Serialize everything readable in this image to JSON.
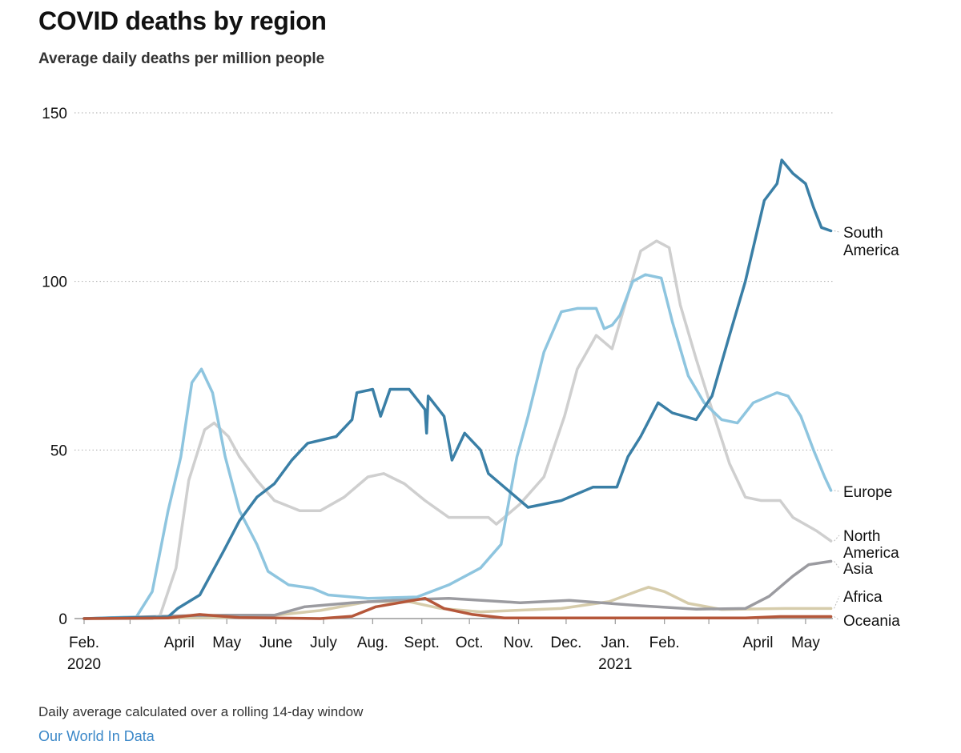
{
  "title": "COVID deaths by region",
  "subtitle": "Average daily deaths per million people",
  "footer": {
    "note": "Daily average calculated over a rolling 14-day window",
    "source": "Our World In Data"
  },
  "chart_data": {
    "type": "line",
    "title": "COVID deaths by region",
    "subtitle": "Average daily deaths per million people",
    "xlabel": "",
    "ylabel": "",
    "ylim": [
      0,
      150
    ],
    "xlim": [
      "2020-02-01",
      "2021-05-17"
    ],
    "grid": true,
    "legend": "direct labels at right end of lines",
    "y_ticks": [
      {
        "value": 0,
        "label": "0"
      },
      {
        "value": 50,
        "label": "50"
      },
      {
        "value": 100,
        "label": "100"
      },
      {
        "value": 150,
        "label": "150"
      }
    ],
    "x_ticks": [
      {
        "date": "2020-02-01",
        "label": "Feb.",
        "sublabel": "2020"
      },
      {
        "date": "2020-03-01",
        "label": ""
      },
      {
        "date": "2020-04-01",
        "label": "April"
      },
      {
        "date": "2020-05-01",
        "label": "May"
      },
      {
        "date": "2020-06-01",
        "label": "June"
      },
      {
        "date": "2020-07-01",
        "label": "July"
      },
      {
        "date": "2020-08-01",
        "label": "Aug."
      },
      {
        "date": "2020-09-01",
        "label": "Sept."
      },
      {
        "date": "2020-10-01",
        "label": "Oct."
      },
      {
        "date": "2020-11-01",
        "label": "Nov."
      },
      {
        "date": "2020-12-01",
        "label": "Dec."
      },
      {
        "date": "2021-01-01",
        "label": "Jan.",
        "sublabel": "2021"
      },
      {
        "date": "2021-02-01",
        "label": "Feb."
      },
      {
        "date": "2021-03-01",
        "label": ""
      },
      {
        "date": "2021-04-01",
        "label": "April"
      },
      {
        "date": "2021-05-01",
        "label": "May"
      }
    ],
    "series": [
      {
        "name": "Africa",
        "label_lines": [
          "Africa"
        ],
        "color": "#d6ccab",
        "points": [
          [
            "2020-02-01",
            0
          ],
          [
            "2020-05-01",
            0.3
          ],
          [
            "2020-06-01",
            1
          ],
          [
            "2020-06-29",
            2.4
          ],
          [
            "2020-07-29",
            5
          ],
          [
            "2020-08-24",
            5
          ],
          [
            "2020-09-13",
            3
          ],
          [
            "2020-10-08",
            2
          ],
          [
            "2020-11-28",
            3
          ],
          [
            "2020-12-28",
            5
          ],
          [
            "2021-01-17",
            8.5
          ],
          [
            "2021-01-22",
            9.3
          ],
          [
            "2021-02-01",
            8
          ],
          [
            "2021-02-16",
            4.5
          ],
          [
            "2021-03-09",
            2.7
          ],
          [
            "2021-04-18",
            3
          ],
          [
            "2021-05-17",
            3
          ]
        ]
      },
      {
        "name": "Asia",
        "label_lines": [
          "Asia"
        ],
        "color": "#9b9ba0",
        "points": [
          [
            "2020-02-01",
            0
          ],
          [
            "2020-04-01",
            0.8
          ],
          [
            "2020-05-01",
            1
          ],
          [
            "2020-05-31",
            1
          ],
          [
            "2020-06-19",
            3.5
          ],
          [
            "2020-07-19",
            4.7
          ],
          [
            "2020-08-18",
            5.5
          ],
          [
            "2020-09-18",
            6
          ],
          [
            "2020-11-02",
            4.7
          ],
          [
            "2020-12-03",
            5.4
          ],
          [
            "2021-01-17",
            3.8
          ],
          [
            "2021-02-21",
            2.8
          ],
          [
            "2021-03-24",
            3
          ],
          [
            "2021-04-08",
            6.6
          ],
          [
            "2021-04-23",
            12.6
          ],
          [
            "2021-05-03",
            16
          ],
          [
            "2021-05-17",
            17
          ]
        ]
      },
      {
        "name": "North America",
        "label_lines": [
          "North",
          "America"
        ],
        "color": "#cfcfcf",
        "points": [
          [
            "2020-02-01",
            0
          ],
          [
            "2020-03-15",
            0
          ],
          [
            "2020-03-20",
            1
          ],
          [
            "2020-03-30",
            15
          ],
          [
            "2020-04-07",
            41
          ],
          [
            "2020-04-17",
            56
          ],
          [
            "2020-04-23",
            58
          ],
          [
            "2020-05-02",
            54
          ],
          [
            "2020-05-09",
            48
          ],
          [
            "2020-05-20",
            41
          ],
          [
            "2020-05-31",
            35
          ],
          [
            "2020-06-16",
            32
          ],
          [
            "2020-06-29",
            32
          ],
          [
            "2020-07-14",
            36
          ],
          [
            "2020-07-29",
            42
          ],
          [
            "2020-08-08",
            43
          ],
          [
            "2020-08-21",
            40
          ],
          [
            "2020-09-03",
            35
          ],
          [
            "2020-09-18",
            30
          ],
          [
            "2020-10-13",
            30
          ],
          [
            "2020-10-18",
            28
          ],
          [
            "2020-11-02",
            34
          ],
          [
            "2020-11-17",
            42
          ],
          [
            "2020-11-30",
            60
          ],
          [
            "2020-12-08",
            74
          ],
          [
            "2020-12-20",
            84
          ],
          [
            "2020-12-30",
            80
          ],
          [
            "2021-01-09",
            96
          ],
          [
            "2021-01-17",
            109
          ],
          [
            "2021-01-27",
            112
          ],
          [
            "2021-02-04",
            110
          ],
          [
            "2021-02-11",
            93
          ],
          [
            "2021-02-21",
            77
          ],
          [
            "2021-03-03",
            62
          ],
          [
            "2021-03-14",
            46
          ],
          [
            "2021-03-24",
            36
          ],
          [
            "2021-04-03",
            35
          ],
          [
            "2021-04-15",
            35
          ],
          [
            "2021-04-23",
            30
          ],
          [
            "2021-05-08",
            26
          ],
          [
            "2021-05-17",
            23
          ]
        ]
      },
      {
        "name": "Europe",
        "label_lines": [
          "Europe"
        ],
        "color": "#8ec5df",
        "points": [
          [
            "2020-02-01",
            0
          ],
          [
            "2020-03-05",
            0.5
          ],
          [
            "2020-03-15",
            8
          ],
          [
            "2020-03-25",
            32
          ],
          [
            "2020-04-02",
            48
          ],
          [
            "2020-04-09",
            70
          ],
          [
            "2020-04-15",
            74
          ],
          [
            "2020-04-22",
            67
          ],
          [
            "2020-04-30",
            48
          ],
          [
            "2020-05-09",
            32
          ],
          [
            "2020-05-20",
            22
          ],
          [
            "2020-05-27",
            14
          ],
          [
            "2020-06-09",
            10
          ],
          [
            "2020-06-24",
            9
          ],
          [
            "2020-07-04",
            7
          ],
          [
            "2020-07-29",
            6
          ],
          [
            "2020-08-29",
            6.4
          ],
          [
            "2020-09-18",
            10
          ],
          [
            "2020-10-08",
            15
          ],
          [
            "2020-10-21",
            22
          ],
          [
            "2020-10-31",
            48
          ],
          [
            "2020-11-07",
            60
          ],
          [
            "2020-11-17",
            79
          ],
          [
            "2020-11-28",
            91
          ],
          [
            "2020-12-08",
            92
          ],
          [
            "2020-12-20",
            92
          ],
          [
            "2020-12-25",
            86
          ],
          [
            "2020-12-30",
            87
          ],
          [
            "2021-01-04",
            90
          ],
          [
            "2021-01-12",
            100
          ],
          [
            "2021-01-20",
            102
          ],
          [
            "2021-01-30",
            101
          ],
          [
            "2021-02-06",
            88
          ],
          [
            "2021-02-16",
            72
          ],
          [
            "2021-02-26",
            64
          ],
          [
            "2021-03-09",
            59
          ],
          [
            "2021-03-19",
            58
          ],
          [
            "2021-03-29",
            64
          ],
          [
            "2021-04-13",
            67
          ],
          [
            "2021-04-20",
            66
          ],
          [
            "2021-04-28",
            60
          ],
          [
            "2021-05-06",
            50
          ],
          [
            "2021-05-13",
            42
          ],
          [
            "2021-05-17",
            38
          ]
        ]
      },
      {
        "name": "South America",
        "label_lines": [
          "South",
          "America"
        ],
        "color": "#3a7fa6",
        "points": [
          [
            "2020-02-01",
            0
          ],
          [
            "2020-03-25",
            0.5
          ],
          [
            "2020-03-31",
            3
          ],
          [
            "2020-04-14",
            7
          ],
          [
            "2020-04-29",
            20
          ],
          [
            "2020-05-09",
            29
          ],
          [
            "2020-05-20",
            36
          ],
          [
            "2020-05-31",
            40
          ],
          [
            "2020-06-11",
            47
          ],
          [
            "2020-06-21",
            52
          ],
          [
            "2020-07-09",
            54
          ],
          [
            "2020-07-19",
            59
          ],
          [
            "2020-07-22",
            67
          ],
          [
            "2020-08-01",
            68
          ],
          [
            "2020-08-06",
            60
          ],
          [
            "2020-08-12",
            68
          ],
          [
            "2020-08-24",
            68
          ],
          [
            "2020-08-29",
            65
          ],
          [
            "2020-09-03",
            62
          ],
          [
            "2020-09-04",
            55
          ],
          [
            "2020-09-05",
            66
          ],
          [
            "2020-09-15",
            60
          ],
          [
            "2020-09-20",
            47
          ],
          [
            "2020-09-28",
            55
          ],
          [
            "2020-10-08",
            50
          ],
          [
            "2020-10-13",
            43
          ],
          [
            "2020-10-23",
            39
          ],
          [
            "2020-11-07",
            33
          ],
          [
            "2020-11-28",
            35
          ],
          [
            "2020-12-18",
            39
          ],
          [
            "2021-01-02",
            39
          ],
          [
            "2021-01-09",
            48
          ],
          [
            "2021-01-17",
            54
          ],
          [
            "2021-01-28",
            64
          ],
          [
            "2021-02-06",
            61
          ],
          [
            "2021-02-21",
            59
          ],
          [
            "2021-03-03",
            66
          ],
          [
            "2021-03-14",
            84
          ],
          [
            "2021-03-24",
            100
          ],
          [
            "2021-03-29",
            110
          ],
          [
            "2021-04-05",
            124
          ],
          [
            "2021-04-13",
            129
          ],
          [
            "2021-04-16",
            136
          ],
          [
            "2021-04-23",
            132
          ],
          [
            "2021-05-01",
            129
          ],
          [
            "2021-05-06",
            122
          ],
          [
            "2021-05-11",
            116
          ],
          [
            "2021-05-17",
            115
          ]
        ]
      },
      {
        "name": "Oceania",
        "label_lines": [
          "Oceania"
        ],
        "color": "#b5573a",
        "points": [
          [
            "2020-02-01",
            0
          ],
          [
            "2020-03-25",
            0.2
          ],
          [
            "2020-04-14",
            1.2
          ],
          [
            "2020-05-09",
            0.3
          ],
          [
            "2020-06-29",
            0
          ],
          [
            "2020-07-19",
            0.7
          ],
          [
            "2020-08-03",
            3.5
          ],
          [
            "2020-08-18",
            4.7
          ],
          [
            "2020-09-03",
            6
          ],
          [
            "2020-09-15",
            3
          ],
          [
            "2020-10-03",
            1.2
          ],
          [
            "2020-10-23",
            0.2
          ],
          [
            "2021-03-24",
            0.2
          ],
          [
            "2021-04-15",
            0.6
          ],
          [
            "2021-05-17",
            0.6
          ]
        ]
      }
    ]
  }
}
